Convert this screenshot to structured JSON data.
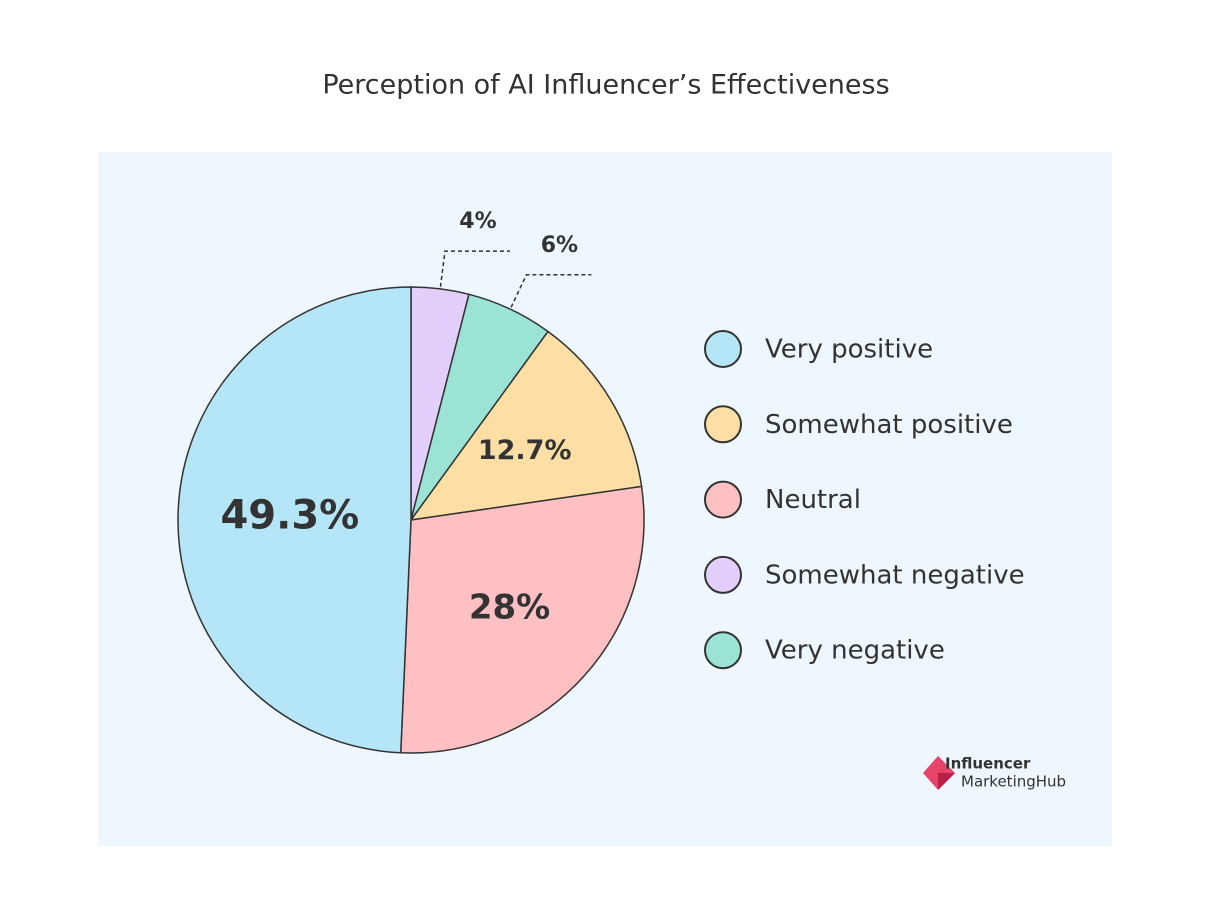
{
  "chart_data": {
    "type": "pie",
    "title": "Perception of AI Influencer’s Effectiveness",
    "categories": [
      "Somewhat negative",
      "Very negative",
      "Somewhat positive",
      "Neutral",
      "Very positive"
    ],
    "values": [
      4,
      6,
      12.7,
      28,
      49.3
    ],
    "value_labels": [
      "4%",
      "6%",
      "12.7%",
      "28%",
      "49.3%"
    ],
    "colors": [
      "#e2cffb",
      "#9be3d5",
      "#fddfa6",
      "#ffc0c3",
      "#b5e6f7"
    ],
    "legend": [
      "Very positive",
      "Somewhat positive",
      "Neutral",
      "Somewhat negative",
      "Very negative"
    ],
    "logo": [
      "Influencer",
      "MarketingHub"
    ]
  }
}
